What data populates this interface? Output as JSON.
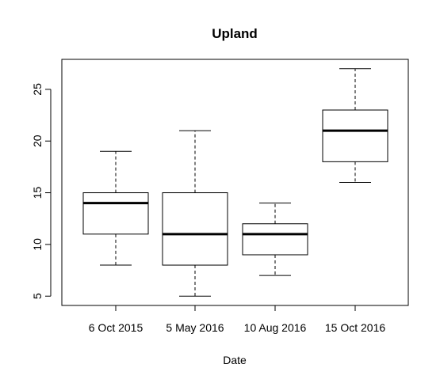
{
  "chart_data": {
    "type": "boxplot",
    "title": "Upland",
    "xlabel": "Date",
    "ylabel": "",
    "categories": [
      "6 Oct 2015",
      "5 May 2016",
      "10 Aug 2016",
      "15 Oct 2016"
    ],
    "boxes": [
      {
        "min": 8,
        "q1": 11,
        "median": 14,
        "q3": 15,
        "max": 19
      },
      {
        "min": 5,
        "q1": 8,
        "median": 11,
        "q3": 15,
        "max": 21
      },
      {
        "min": 7,
        "q1": 9,
        "median": 11,
        "q3": 12,
        "max": 14
      },
      {
        "min": 16,
        "q1": 18,
        "median": 21,
        "q3": 23,
        "max": 27
      }
    ],
    "yticks": [
      5,
      10,
      15,
      20,
      25
    ],
    "ylim": [
      4.1,
      27.9
    ],
    "grid": false,
    "legend": "none"
  }
}
